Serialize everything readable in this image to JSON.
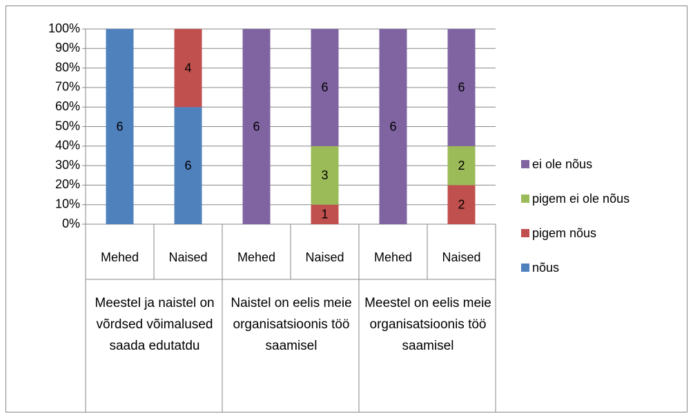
{
  "chart_data": {
    "type": "bar",
    "stacking": "percent",
    "categories": [
      "Mehed",
      "Naised",
      "Mehed",
      "Naised",
      "Mehed",
      "Naised"
    ],
    "groups": [
      "Meestel ja naistel on võrdsed võimalused saada edutatdu",
      "Naistel on eelis meie organisatsioonis töö saamisel",
      "Meestel on eelis meie organisatsioonis töö saamisel"
    ],
    "series": [
      {
        "name": "nõus",
        "color": "#4f81bd",
        "values": [
          6,
          6,
          null,
          null,
          null,
          null
        ]
      },
      {
        "name": "pigem nõus",
        "color": "#c0504d",
        "values": [
          null,
          4,
          null,
          1,
          null,
          2
        ]
      },
      {
        "name": "pigem ei ole nõus",
        "color": "#9bbb59",
        "values": [
          null,
          null,
          null,
          3,
          null,
          2
        ]
      },
      {
        "name": "ei ole nõus",
        "color": "#8064a2",
        "values": [
          null,
          null,
          6,
          6,
          6,
          6
        ]
      }
    ],
    "ylim": [
      0,
      100
    ],
    "yticks": [
      {
        "value": 0,
        "label": "0%"
      },
      {
        "value": 10,
        "label": "10%"
      },
      {
        "value": 20,
        "label": "20%"
      },
      {
        "value": 30,
        "label": "30%"
      },
      {
        "value": 40,
        "label": "40%"
      },
      {
        "value": 50,
        "label": "50%"
      },
      {
        "value": 60,
        "label": "60%"
      },
      {
        "value": 70,
        "label": "70%"
      },
      {
        "value": 80,
        "label": "80%"
      },
      {
        "value": 90,
        "label": "90%"
      },
      {
        "value": 100,
        "label": "100%"
      }
    ],
    "grid": true,
    "legend": "right"
  }
}
